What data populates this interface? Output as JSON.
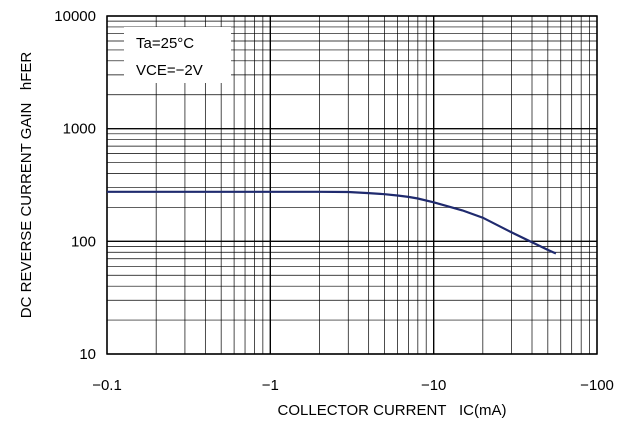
{
  "chart_data": {
    "type": "line",
    "title": "",
    "xlabel": "COLLECTOR CURRENT   IC(mA)",
    "ylabel": "DC REVERSE CURRENT GAIN   hFER",
    "x_scale": "log",
    "y_scale": "log",
    "xlim": [
      -0.1,
      -100
    ],
    "ylim": [
      10,
      10000
    ],
    "x_ticks": [
      {
        "value": -0.1,
        "label": "−0.1"
      },
      {
        "value": -1,
        "label": "−1"
      },
      {
        "value": -10,
        "label": "−10"
      },
      {
        "value": -100,
        "label": "−100"
      }
    ],
    "y_ticks": [
      {
        "value": 10,
        "label": "10"
      },
      {
        "value": 100,
        "label": "100"
      },
      {
        "value": 1000,
        "label": "1000"
      },
      {
        "value": 10000,
        "label": "10000"
      }
    ],
    "grid": true,
    "line_color": "#1f2a6e",
    "annotations": [
      "Ta=25°C",
      "VCE=−2V"
    ],
    "series": [
      {
        "x": [
          -0.1,
          -0.5,
          -1,
          -2,
          -3,
          -4,
          -5,
          -6,
          -7,
          -8,
          -10,
          -15,
          -20,
          -30,
          -40,
          -50,
          -56
        ],
        "y": [
          275,
          275,
          275,
          275,
          274,
          268,
          262,
          255,
          248,
          240,
          222,
          188,
          162,
          120,
          98,
          84,
          78
        ]
      }
    ]
  }
}
